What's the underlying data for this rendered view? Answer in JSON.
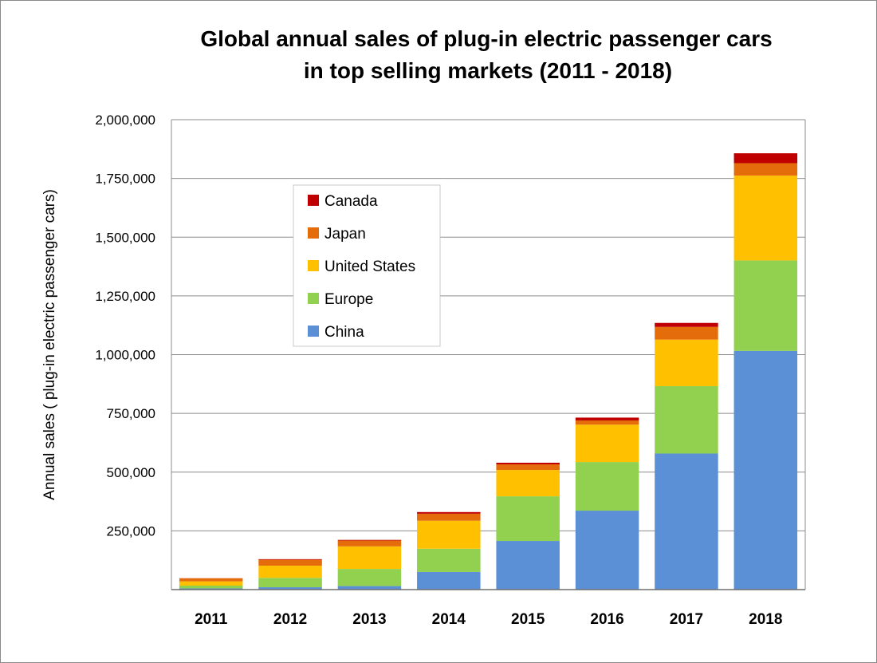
{
  "chart_data": {
    "type": "bar",
    "stacked": true,
    "title": "Global annual sales of plug-in electric passenger cars",
    "subtitle": "in top selling markets (2011 - 2018)",
    "xlabel": "",
    "ylabel": "Annual sales ( plug-in electric passenger cars)",
    "ylim": [
      0,
      2000000
    ],
    "yticks": [
      250000,
      500000,
      750000,
      1000000,
      1250000,
      1500000,
      1750000,
      2000000
    ],
    "ytick_labels": [
      "250,000",
      "500,000",
      "750,000",
      "1,000,000",
      "1,250,000",
      "1,500,000",
      "1,750,000",
      "2,000,000"
    ],
    "grid": true,
    "legend_position": "upper-left-inside",
    "categories": [
      "2011",
      "2012",
      "2013",
      "2014",
      "2015",
      "2016",
      "2017",
      "2018"
    ],
    "series": [
      {
        "name": "China",
        "color": "#5b8fd6",
        "values": [
          5000,
          10000,
          15000,
          75000,
          207000,
          336000,
          579000,
          1016000
        ]
      },
      {
        "name": "Europe",
        "color": "#92d050",
        "values": [
          12000,
          40000,
          73000,
          99000,
          190000,
          207000,
          287000,
          385000
        ]
      },
      {
        "name": "United States",
        "color": "#ffc000",
        "values": [
          18000,
          52000,
          96000,
          119000,
          112000,
          159000,
          198000,
          361000
        ]
      },
      {
        "name": "Japan",
        "color": "#e46c0a",
        "values": [
          13000,
          25000,
          25000,
          30000,
          24000,
          18000,
          54000,
          53000
        ]
      },
      {
        "name": "Canada",
        "color": "#c00000",
        "values": [
          500,
          2500,
          2500,
          7000,
          7000,
          12000,
          17000,
          42000
        ]
      }
    ]
  }
}
